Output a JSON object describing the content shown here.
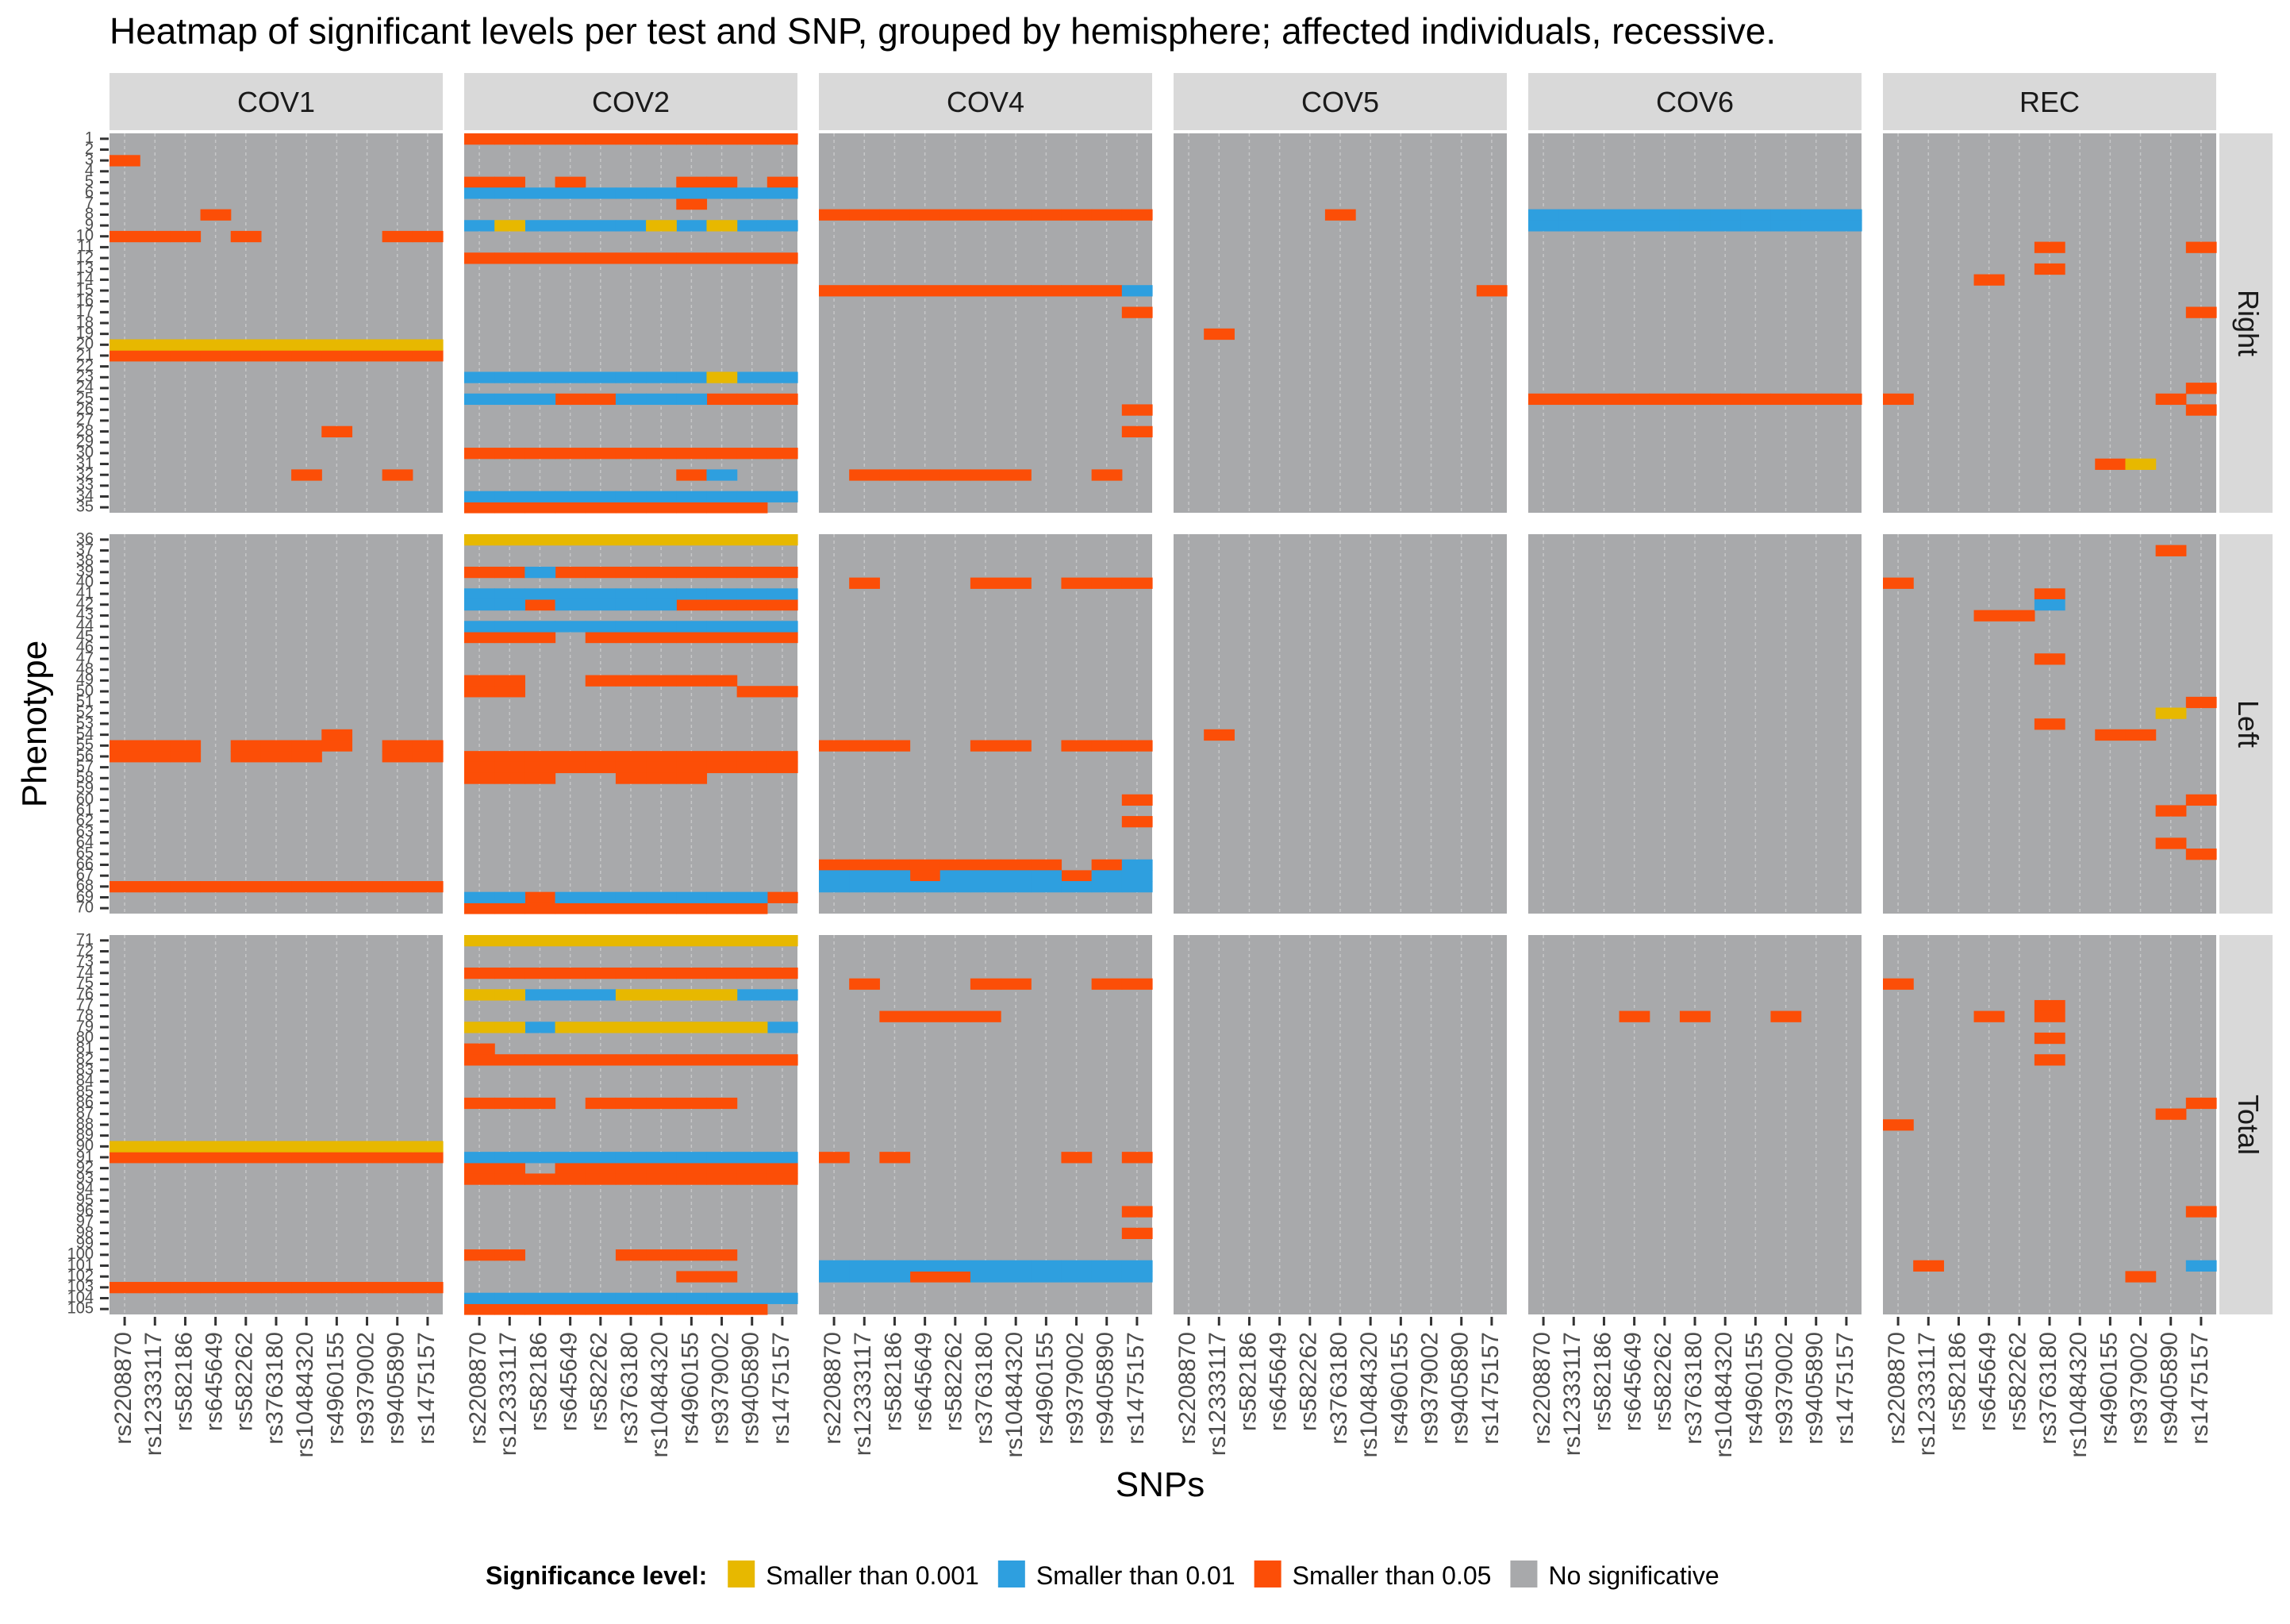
{
  "chart_data": {
    "type": "heatmap",
    "title": "Heatmap of significant levels per test and SNP, grouped by hemisphere; affected individuals, recessive.",
    "xlabel": "SNPs",
    "ylabel": "Phenotype",
    "columns": [
      "COV1",
      "COV2",
      "COV4",
      "COV5",
      "COV6",
      "REC"
    ],
    "rows": [
      {
        "name": "Right",
        "start": 1,
        "end": 35
      },
      {
        "name": "Left",
        "start": 36,
        "end": 70
      },
      {
        "name": "Total",
        "start": 71,
        "end": 105
      }
    ],
    "snps": [
      "rs2208870",
      "rs12333117",
      "rs582186",
      "rs645649",
      "rs582262",
      "rs3763180",
      "rs10484320",
      "rs4960155",
      "rs9379002",
      "rs9405890",
      "rs1475157"
    ],
    "legend": {
      "title": "Significance level:",
      "position": "bottom",
      "items": [
        {
          "key": "p001",
          "label": "Smaller than 0.001",
          "color": "#E7B800"
        },
        {
          "key": "p01",
          "label": "Smaller than 0.01",
          "color": "#2E9FDF"
        },
        {
          "key": "p05",
          "label": "Smaller than 0.05",
          "color": "#FC4E07"
        },
        {
          "key": "ns",
          "label": "No significative",
          "color": "#A8A9AB"
        }
      ]
    },
    "default_level": "ns",
    "cells": {
      "COV1": {
        "p05": [
          [
            3,
            [
              1
            ]
          ],
          [
            8,
            [
              4
            ]
          ],
          [
            10,
            [
              1,
              2,
              3,
              5,
              10,
              11
            ]
          ],
          [
            21,
            "all"
          ],
          [
            28,
            [
              8
            ]
          ],
          [
            32,
            [
              7,
              10
            ]
          ],
          [
            54,
            [
              8
            ]
          ],
          [
            55,
            [
              1,
              2,
              3,
              5,
              6,
              7,
              8,
              10,
              11
            ]
          ],
          [
            56,
            [
              1,
              2,
              3,
              5,
              6,
              7,
              10,
              11
            ]
          ],
          [
            68,
            "all"
          ],
          [
            91,
            "all"
          ],
          [
            103,
            "all"
          ]
        ],
        "p001": [
          [
            20,
            "all"
          ],
          [
            90,
            "all"
          ]
        ]
      },
      "COV2": {
        "p05": [
          [
            1,
            "all"
          ],
          [
            5,
            [
              1,
              2,
              4,
              8,
              9,
              11
            ]
          ],
          [
            7,
            [
              8
            ]
          ],
          [
            12,
            "all"
          ],
          [
            25,
            [
              4,
              5,
              9,
              10,
              11
            ]
          ],
          [
            30,
            "all"
          ],
          [
            32,
            [
              8
            ]
          ],
          [
            35,
            [
              1,
              2,
              3,
              4,
              5,
              6,
              7,
              8,
              9,
              10
            ]
          ],
          [
            39,
            [
              1,
              2,
              4,
              5,
              6,
              7,
              8,
              9,
              10,
              11
            ]
          ],
          [
            42,
            [
              3,
              8,
              9,
              10,
              11
            ]
          ],
          [
            45,
            [
              1,
              2,
              3,
              5,
              6,
              7,
              8,
              9,
              10,
              11
            ]
          ],
          [
            49,
            [
              1,
              2,
              5,
              6,
              7,
              8,
              9
            ]
          ],
          [
            50,
            [
              1,
              2,
              10,
              11
            ]
          ],
          [
            56,
            "all"
          ],
          [
            57,
            "all"
          ],
          [
            58,
            [
              1,
              2,
              3,
              6,
              7,
              8
            ]
          ],
          [
            69,
            [
              3,
              11
            ]
          ],
          [
            70,
            [
              1,
              2,
              3,
              4,
              5,
              6,
              7,
              8,
              9,
              10
            ]
          ],
          [
            74,
            "all"
          ],
          [
            81,
            [
              1
            ]
          ],
          [
            82,
            "all"
          ],
          [
            86,
            [
              1,
              2,
              3,
              5,
              6,
              7,
              8,
              9
            ]
          ],
          [
            92,
            [
              1,
              2,
              4,
              5,
              6,
              7,
              8,
              9,
              10,
              11
            ]
          ],
          [
            93,
            "all"
          ],
          [
            100,
            [
              1,
              2,
              6,
              7,
              8,
              9
            ]
          ],
          [
            102,
            [
              8,
              9
            ]
          ],
          [
            105,
            [
              1,
              2,
              3,
              4,
              5,
              6,
              7,
              8,
              9,
              10
            ]
          ]
        ],
        "p01": [
          [
            6,
            "all"
          ],
          [
            9,
            [
              1,
              3,
              4,
              5,
              6,
              8,
              10,
              11
            ]
          ],
          [
            23,
            [
              1,
              2,
              3,
              4,
              5,
              6,
              7,
              8,
              10,
              11
            ]
          ],
          [
            25,
            [
              1,
              2,
              3,
              6,
              7,
              8
            ]
          ],
          [
            32,
            [
              9
            ]
          ],
          [
            34,
            "all"
          ],
          [
            39,
            [
              3
            ]
          ],
          [
            41,
            "all"
          ],
          [
            42,
            [
              1,
              2,
              4,
              5,
              6,
              7
            ]
          ],
          [
            44,
            "all"
          ],
          [
            69,
            [
              1,
              2,
              4,
              5,
              6,
              7,
              8,
              9,
              10
            ]
          ],
          [
            76,
            [
              3,
              4,
              5,
              10,
              11
            ]
          ],
          [
            79,
            [
              3,
              11
            ]
          ],
          [
            91,
            "all"
          ],
          [
            104,
            "all"
          ]
        ],
        "p001": [
          [
            9,
            [
              2,
              7,
              9
            ]
          ],
          [
            23,
            [
              9
            ]
          ],
          [
            36,
            "all"
          ],
          [
            71,
            "all"
          ],
          [
            76,
            [
              1,
              2,
              6,
              7,
              8,
              9
            ]
          ],
          [
            79,
            [
              1,
              2,
              4,
              5,
              6,
              7,
              8,
              9,
              10
            ]
          ]
        ]
      },
      "COV4": {
        "p05": [
          [
            8,
            "all"
          ],
          [
            15,
            [
              1,
              2,
              3,
              4,
              5,
              6,
              7,
              8,
              9,
              10
            ]
          ],
          [
            17,
            [
              11
            ]
          ],
          [
            26,
            [
              11
            ]
          ],
          [
            28,
            [
              11
            ]
          ],
          [
            32,
            [
              2,
              3,
              4,
              5,
              6,
              7,
              10
            ]
          ],
          [
            40,
            [
              2,
              6,
              7,
              9,
              10,
              11
            ]
          ],
          [
            55,
            [
              1,
              2,
              3,
              6,
              7,
              9,
              10,
              11
            ]
          ],
          [
            60,
            [
              11
            ]
          ],
          [
            62,
            [
              11
            ]
          ],
          [
            66,
            [
              1,
              2,
              3,
              4,
              5,
              6,
              7,
              8,
              10
            ]
          ],
          [
            67,
            [
              4,
              9
            ]
          ],
          [
            75,
            [
              2,
              6,
              7,
              10,
              11
            ]
          ],
          [
            78,
            [
              3,
              4,
              5,
              6
            ]
          ],
          [
            91,
            [
              1,
              3,
              9,
              11
            ]
          ],
          [
            96,
            [
              11
            ]
          ],
          [
            98,
            [
              11
            ]
          ],
          [
            102,
            [
              4,
              5
            ]
          ]
        ],
        "p01": [
          [
            15,
            [
              11
            ]
          ],
          [
            66,
            [
              11
            ]
          ],
          [
            67,
            [
              1,
              2,
              3,
              5,
              6,
              7,
              8,
              10,
              11
            ]
          ],
          [
            68,
            "all"
          ],
          [
            101,
            "all"
          ],
          [
            102,
            [
              1,
              2,
              3,
              6,
              7,
              8,
              9,
              10,
              11
            ]
          ]
        ]
      },
      "COV5": {
        "p05": [
          [
            8,
            [
              6
            ]
          ],
          [
            15,
            [
              11
            ]
          ],
          [
            19,
            [
              2
            ]
          ],
          [
            54,
            [
              2
            ]
          ]
        ]
      },
      "COV6": {
        "p05": [
          [
            25,
            "all"
          ],
          [
            78,
            [
              4,
              6,
              9
            ]
          ]
        ],
        "p01": [
          [
            8,
            "all"
          ],
          [
            9,
            "all"
          ]
        ]
      },
      "REC": {
        "p05": [
          [
            11,
            [
              6,
              11
            ]
          ],
          [
            13,
            [
              6
            ]
          ],
          [
            14,
            [
              4
            ]
          ],
          [
            17,
            [
              11
            ]
          ],
          [
            24,
            [
              11
            ]
          ],
          [
            25,
            [
              1,
              10
            ]
          ],
          [
            26,
            [
              11
            ]
          ],
          [
            31,
            [
              8
            ]
          ],
          [
            37,
            [
              10
            ]
          ],
          [
            40,
            [
              1
            ]
          ],
          [
            41,
            [
              6
            ]
          ],
          [
            43,
            [
              4,
              5
            ]
          ],
          [
            47,
            [
              6
            ]
          ],
          [
            51,
            [
              11
            ]
          ],
          [
            53,
            [
              6
            ]
          ],
          [
            54,
            [
              8,
              9
            ]
          ],
          [
            60,
            [
              11
            ]
          ],
          [
            61,
            [
              10
            ]
          ],
          [
            64,
            [
              10
            ]
          ],
          [
            65,
            [
              11
            ]
          ],
          [
            75,
            [
              1
            ]
          ],
          [
            77,
            [
              6
            ]
          ],
          [
            78,
            [
              4,
              6
            ]
          ],
          [
            80,
            [
              6
            ]
          ],
          [
            82,
            [
              6
            ]
          ],
          [
            86,
            [
              11
            ]
          ],
          [
            87,
            [
              10
            ]
          ],
          [
            88,
            [
              1
            ]
          ],
          [
            96,
            [
              11
            ]
          ],
          [
            101,
            [
              2
            ]
          ],
          [
            102,
            [
              9
            ]
          ]
        ],
        "p01": [
          [
            42,
            [
              6
            ]
          ],
          [
            101,
            [
              11
            ]
          ]
        ],
        "p001": [
          [
            31,
            [
              9
            ]
          ],
          [
            52,
            [
              10
            ]
          ]
        ]
      }
    }
  }
}
